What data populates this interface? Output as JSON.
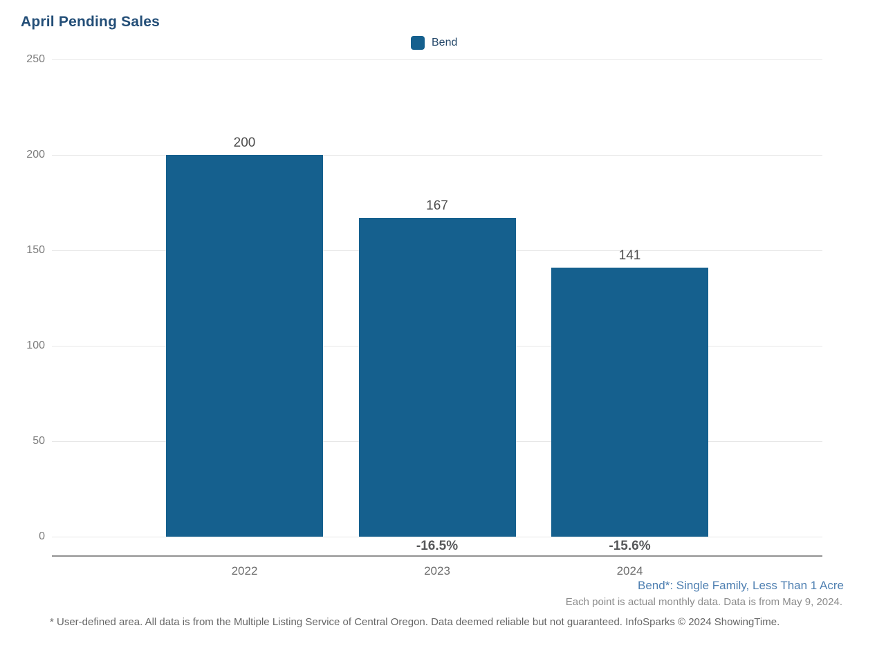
{
  "page": {
    "title": "April Pending Sales",
    "legend": [
      {
        "label": "Bend",
        "color": "#15608e"
      }
    ],
    "annotations": {
      "series_definition": "Bend*: Single Family, Less Than 1 Acre",
      "data_note": "Each point is actual monthly data. Data is from May 9, 2024.",
      "footnote": "* User-defined area. All data is from the Multiple Listing Service of Central Oregon. Data deemed reliable but not guaranteed. InfoSparks © 2024 ShowingTime."
    },
    "colors": {
      "bar": "#15608e",
      "title_text": "#234e77",
      "annotation_blue": "#4e7fb1",
      "axis_line": "#919191",
      "gridline": "#e6e6e6"
    }
  },
  "chart_data": {
    "type": "bar",
    "title": "April Pending Sales",
    "categories": [
      "2022",
      "2023",
      "2024"
    ],
    "series": [
      {
        "name": "Bend",
        "values": [
          200,
          167,
          141
        ]
      }
    ],
    "pct_change_labels": [
      "",
      "-16.5%",
      "-15.6%"
    ],
    "xlabel": "",
    "ylabel": "",
    "ylim": [
      0,
      250
    ],
    "yticks": [
      0,
      50,
      100,
      150,
      200,
      250
    ],
    "grid": true,
    "legend_position": "top-center"
  }
}
